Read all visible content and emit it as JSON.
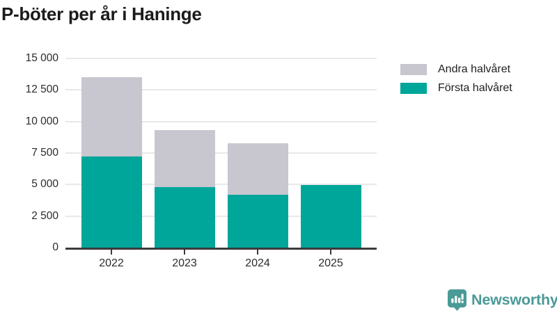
{
  "title": "P-böter per år i Haninge",
  "legend": {
    "items": [
      {
        "label": "Andra halvåret",
        "color": "#c8c6cf"
      },
      {
        "label": "Första halvåret",
        "color": "#00a69a"
      }
    ]
  },
  "chart_data": {
    "type": "bar",
    "stacked": true,
    "title": "P-böter per år i Haninge",
    "categories": [
      "2022",
      "2023",
      "2024",
      "2025"
    ],
    "series": [
      {
        "name": "Första halvåret",
        "color": "#00a69a",
        "values": [
          7200,
          4800,
          4200,
          4950
        ]
      },
      {
        "name": "Andra halvåret",
        "color": "#c8c6cf",
        "values": [
          6300,
          4500,
          4050,
          0
        ]
      }
    ],
    "ylim": [
      0,
      15000
    ],
    "yticks": [
      0,
      2500,
      5000,
      7500,
      10000,
      12500,
      15000
    ],
    "ytick_labels": [
      "0",
      "2 500",
      "5 000",
      "7 500",
      "10 000",
      "12 500",
      "15 000"
    ],
    "xlabel": "",
    "ylabel": "",
    "grid": true,
    "legend_position": "top-right"
  },
  "branding": {
    "name": "Newsworthy"
  },
  "colors": {
    "grid": "#e8e8e8",
    "axis": "#3b3b3b",
    "text": "#2b2b2b",
    "brand": "#4a9a97",
    "background": "#ffffff"
  }
}
